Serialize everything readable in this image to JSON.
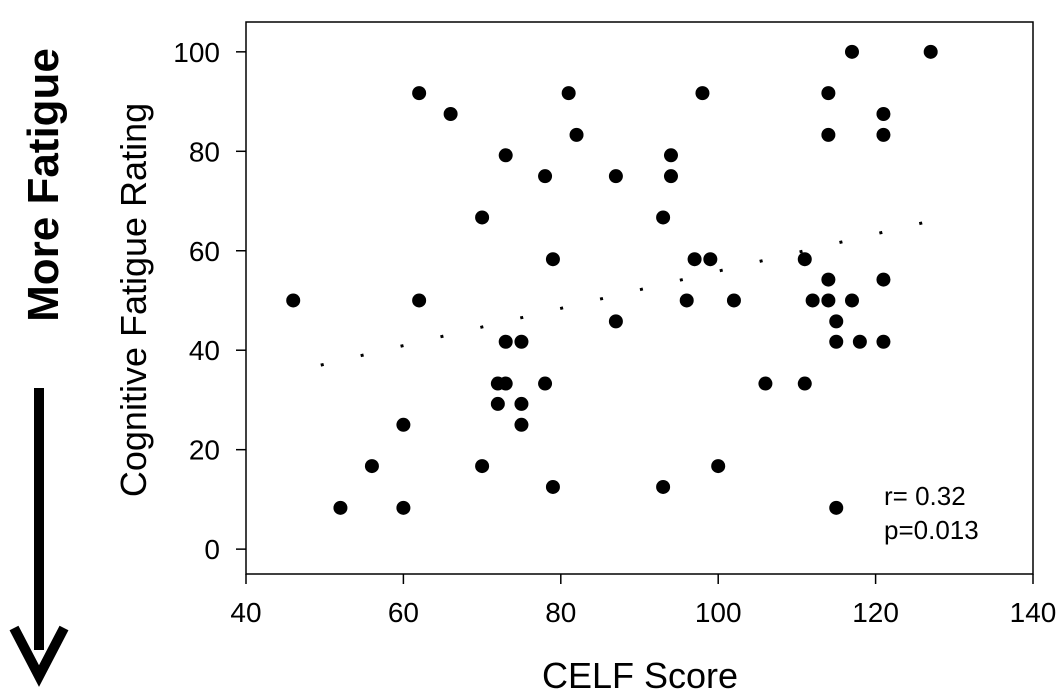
{
  "side_annotation": {
    "label": "More Fatigue",
    "arrow": "down-arrow"
  },
  "stats": {
    "r": "r= 0.32",
    "p": "p=0.013"
  },
  "chart_data": {
    "type": "scatter",
    "xlabel": "CELF Score",
    "ylabel": "Cognitive Fatigue Rating",
    "xlim": [
      40,
      140
    ],
    "ylim": [
      -5,
      106
    ],
    "xticks": [
      40,
      60,
      80,
      100,
      120,
      140
    ],
    "yticks": [
      0,
      20,
      40,
      60,
      80,
      100
    ],
    "grid": false,
    "points": [
      [
        46,
        50
      ],
      [
        52,
        8.3
      ],
      [
        56,
        16.7
      ],
      [
        60,
        8.3
      ],
      [
        60,
        25
      ],
      [
        62,
        91.7
      ],
      [
        62,
        50
      ],
      [
        66,
        87.5
      ],
      [
        70,
        66.7
      ],
      [
        70,
        16.7
      ],
      [
        72,
        33.3
      ],
      [
        72,
        29.2
      ],
      [
        73,
        79.2
      ],
      [
        73,
        41.7
      ],
      [
        73,
        33.3
      ],
      [
        75,
        41.7
      ],
      [
        75,
        29.2
      ],
      [
        75,
        25
      ],
      [
        78,
        75
      ],
      [
        78,
        33.3
      ],
      [
        79,
        58.3
      ],
      [
        79,
        12.5
      ],
      [
        81,
        91.7
      ],
      [
        82,
        83.3
      ],
      [
        87,
        75
      ],
      [
        87,
        45.8
      ],
      [
        93,
        66.7
      ],
      [
        93,
        12.5
      ],
      [
        94,
        79.2
      ],
      [
        94,
        75
      ],
      [
        96,
        50
      ],
      [
        97,
        58.3
      ],
      [
        98,
        91.7
      ],
      [
        99,
        58.3
      ],
      [
        100,
        16.7
      ],
      [
        102,
        50
      ],
      [
        106,
        33.3
      ],
      [
        111,
        58.3
      ],
      [
        111,
        33.3
      ],
      [
        112,
        50
      ],
      [
        114,
        91.7
      ],
      [
        114,
        83.3
      ],
      [
        114,
        54.2
      ],
      [
        114,
        50
      ],
      [
        115,
        45.8
      ],
      [
        115,
        41.7
      ],
      [
        115,
        8.3
      ],
      [
        117,
        100
      ],
      [
        117,
        50
      ],
      [
        118,
        41.7
      ],
      [
        121,
        87.5
      ],
      [
        121,
        83.3
      ],
      [
        121,
        54.2
      ],
      [
        121,
        41.7
      ],
      [
        127,
        100
      ]
    ],
    "trendline": {
      "style": "dotted",
      "x": [
        49.5,
        127
      ],
      "y": [
        37,
        66
      ]
    }
  }
}
